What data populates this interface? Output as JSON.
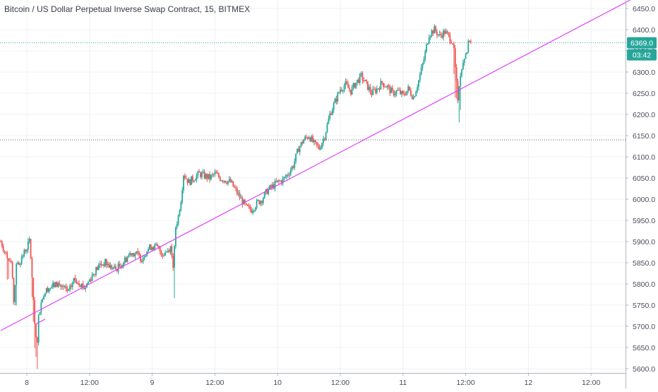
{
  "title": "Bitcoin / US Dollar Perpetual Inverse Swap Contract, 15, BITMEX",
  "price_badge": {
    "label": "6369.0",
    "value": 6369.0,
    "color": "#26a69a"
  },
  "countdown_badge": {
    "label": "03:42",
    "color": "#26a69a"
  },
  "colors": {
    "up": "#26a69a",
    "down": "#ef5350",
    "trendline": "#e040fb",
    "grid": "#eef0f3",
    "axis_text": "#4a4e5a",
    "price_line": "#26a69a",
    "horizontal_level": "#5a5e6a"
  },
  "chart_data": {
    "type": "candlestick",
    "symbol": "Bitcoin / US Dollar Perpetual Inverse Swap Contract",
    "interval": "15",
    "exchange": "BITMEX",
    "x_axis": {
      "ticks": [
        "8",
        "12:00",
        "9",
        "12:00",
        "10",
        "12:00",
        "11",
        "12:00",
        "12",
        "12:00"
      ],
      "tick_times_hours": [
        0,
        12,
        24,
        36,
        48,
        60,
        72,
        84,
        96,
        108
      ]
    },
    "y_axis": {
      "ticks": [
        5600,
        5650,
        5700,
        5750,
        5800,
        5850,
        5900,
        5950,
        6000,
        6050,
        6100,
        6150,
        6200,
        6250,
        6300,
        6350,
        6400,
        6450
      ],
      "range": [
        5600,
        6470
      ],
      "position": "right"
    },
    "grid": true,
    "horizontal_levels": [
      6369.0,
      6140.0
    ],
    "trendline": {
      "from": {
        "t": -5,
        "price": 5690
      },
      "to": {
        "t": 115.5,
        "price": 6470
      }
    },
    "short_segment": {
      "from": {
        "t": 1.7,
        "price": 5705
      },
      "to": {
        "t": 3.5,
        "price": 5717
      }
    },
    "price_path": [
      [
        -5,
        5900,
        0
      ],
      [
        -4,
        5870,
        0
      ],
      [
        -3,
        5850,
        1
      ],
      [
        -2.5,
        5760,
        1
      ],
      [
        -2,
        5840,
        0
      ],
      [
        -1,
        5860,
        0
      ],
      [
        -0.3,
        5880,
        0
      ],
      [
        0.5,
        5900,
        0
      ],
      [
        1,
        5820,
        1
      ],
      [
        1.3,
        5740,
        1
      ],
      [
        1.6,
        5700,
        1
      ],
      [
        1.9,
        5650,
        1
      ],
      [
        2.3,
        5730,
        0
      ],
      [
        3,
        5770,
        0
      ],
      [
        4,
        5790,
        0
      ],
      [
        5,
        5795,
        0
      ],
      [
        6,
        5800,
        0
      ],
      [
        7,
        5790,
        0
      ],
      [
        8,
        5780,
        0
      ],
      [
        9,
        5810,
        0
      ],
      [
        10,
        5805,
        0
      ],
      [
        11,
        5790,
        0
      ],
      [
        12,
        5810,
        0
      ],
      [
        13,
        5830,
        0
      ],
      [
        14,
        5845,
        0
      ],
      [
        15,
        5850,
        0
      ],
      [
        16,
        5840,
        0
      ],
      [
        17,
        5835,
        0
      ],
      [
        18,
        5845,
        0
      ],
      [
        19,
        5860,
        0
      ],
      [
        20,
        5875,
        0
      ],
      [
        21,
        5870,
        0
      ],
      [
        22,
        5860,
        0
      ],
      [
        23,
        5880,
        0
      ],
      [
        24,
        5890,
        0
      ],
      [
        25,
        5885,
        0
      ],
      [
        26,
        5870,
        0
      ],
      [
        27,
        5880,
        0
      ],
      [
        27.6,
        5890,
        0
      ],
      [
        28,
        5830,
        1
      ],
      [
        28.4,
        5930,
        0
      ],
      [
        29,
        5960,
        0
      ],
      [
        29.5,
        6000,
        0
      ],
      [
        30,
        6060,
        0
      ],
      [
        31,
        6040,
        0
      ],
      [
        32,
        6050,
        0
      ],
      [
        33,
        6060,
        0
      ],
      [
        34,
        6055,
        0
      ],
      [
        35,
        6050,
        0
      ],
      [
        36,
        6060,
        0
      ],
      [
        37,
        6050,
        0
      ],
      [
        38,
        6045,
        0
      ],
      [
        39,
        6040,
        0
      ],
      [
        40,
        6020,
        0
      ],
      [
        41,
        6000,
        0
      ],
      [
        42,
        5980,
        0
      ],
      [
        43,
        5975,
        0
      ],
      [
        44,
        5990,
        0
      ],
      [
        45,
        6000,
        0
      ],
      [
        46,
        6020,
        0
      ],
      [
        47,
        6030,
        0
      ],
      [
        48,
        6040,
        0
      ],
      [
        49,
        6045,
        0
      ],
      [
        50,
        6060,
        0
      ],
      [
        51,
        6080,
        0
      ],
      [
        52,
        6120,
        0
      ],
      [
        53,
        6140,
        0
      ],
      [
        54,
        6150,
        0
      ],
      [
        55,
        6130,
        0
      ],
      [
        56,
        6120,
        0
      ],
      [
        57,
        6150,
        0
      ],
      [
        58,
        6200,
        0
      ],
      [
        59,
        6230,
        0
      ],
      [
        60,
        6260,
        0
      ],
      [
        61,
        6270,
        0
      ],
      [
        62,
        6255,
        0
      ],
      [
        63,
        6275,
        0
      ],
      [
        64,
        6290,
        0
      ],
      [
        65,
        6270,
        0
      ],
      [
        66,
        6250,
        0
      ],
      [
        67,
        6260,
        0
      ],
      [
        68,
        6275,
        0
      ],
      [
        69,
        6265,
        0
      ],
      [
        70,
        6250,
        0
      ],
      [
        71,
        6255,
        0
      ],
      [
        72,
        6245,
        0
      ],
      [
        73,
        6260,
        0
      ],
      [
        74,
        6240,
        0
      ],
      [
        75,
        6280,
        0
      ],
      [
        76,
        6330,
        0
      ],
      [
        77,
        6390,
        0
      ],
      [
        78,
        6400,
        0
      ],
      [
        79,
        6385,
        0
      ],
      [
        80,
        6395,
        0
      ],
      [
        81,
        6380,
        0
      ],
      [
        81.6,
        6370,
        0
      ],
      [
        82,
        6310,
        1
      ],
      [
        82.5,
        6240,
        1
      ],
      [
        83,
        6300,
        0
      ],
      [
        83.6,
        6330,
        0
      ],
      [
        84.2,
        6350,
        0
      ],
      [
        84.8,
        6380,
        0
      ],
      [
        85.2,
        6369,
        0
      ]
    ]
  }
}
